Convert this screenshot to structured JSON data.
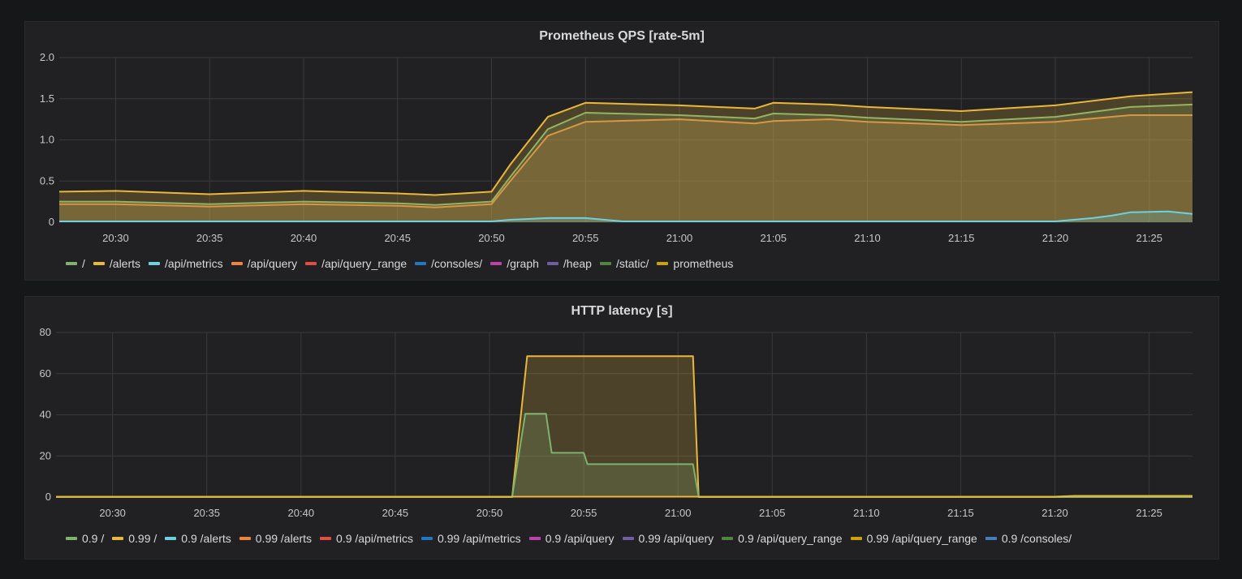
{
  "chart_data": [
    {
      "type": "area",
      "title": "Prometheus QPS [rate-5m]",
      "x_ticks": [
        "20:30",
        "20:35",
        "20:40",
        "20:45",
        "20:50",
        "20:55",
        "21:00",
        "21:05",
        "21:10",
        "21:15",
        "21:20",
        "21:25"
      ],
      "x_tick_minutes": [
        30,
        35,
        40,
        45,
        50,
        55,
        60,
        65,
        70,
        75,
        80,
        85
      ],
      "x_range_minutes": [
        27,
        87.3
      ],
      "y_ticks": [
        "0",
        "0.5",
        "1.0",
        "1.5",
        "2.0"
      ],
      "ylim": [
        0,
        2.0
      ],
      "grid": true,
      "legend_position": "bottom",
      "legend": [
        {
          "name": "/",
          "color": "#7eb26d"
        },
        {
          "name": "/alerts",
          "color": "#eab839"
        },
        {
          "name": "/api/metrics",
          "color": "#6ed0e0"
        },
        {
          "name": "/api/query",
          "color": "#ef843c"
        },
        {
          "name": "/api/query_range",
          "color": "#e24d42"
        },
        {
          "name": "/consoles/",
          "color": "#1f78c1"
        },
        {
          "name": "/graph",
          "color": "#ba43a9"
        },
        {
          "name": "/heap",
          "color": "#705da0"
        },
        {
          "name": "/static/",
          "color": "#508642"
        },
        {
          "name": "prometheus",
          "color": "#cca300"
        }
      ],
      "series": [
        {
          "name": "/api/query_range",
          "color": "#ef843c",
          "x": [
            27,
            30,
            35,
            40,
            45,
            47,
            50,
            51,
            53,
            55,
            60,
            64,
            65,
            68,
            70,
            75,
            80,
            84,
            87.3
          ],
          "values": [
            0.22,
            0.22,
            0.19,
            0.22,
            0.2,
            0.18,
            0.22,
            0.5,
            1.05,
            1.22,
            1.25,
            1.2,
            1.23,
            1.25,
            1.22,
            1.18,
            1.22,
            1.3,
            1.3
          ]
        },
        {
          "name": "/static/",
          "color": "#7eb26d",
          "x": [
            27,
            30,
            35,
            40,
            45,
            47,
            50,
            51,
            53,
            55,
            60,
            64,
            65,
            68,
            70,
            75,
            80,
            84,
            87.3
          ],
          "values": [
            0.25,
            0.25,
            0.22,
            0.25,
            0.23,
            0.21,
            0.25,
            0.55,
            1.13,
            1.33,
            1.3,
            1.26,
            1.32,
            1.3,
            1.27,
            1.22,
            1.28,
            1.4,
            1.43
          ]
        },
        {
          "name": "prometheus",
          "color": "#eab839",
          "x": [
            27,
            30,
            35,
            40,
            45,
            47,
            50,
            51,
            53,
            55,
            60,
            64,
            65,
            68,
            70,
            75,
            80,
            84,
            87.3
          ],
          "values": [
            0.37,
            0.38,
            0.34,
            0.38,
            0.35,
            0.33,
            0.37,
            0.7,
            1.28,
            1.45,
            1.42,
            1.38,
            1.45,
            1.43,
            1.4,
            1.35,
            1.42,
            1.53,
            1.58
          ]
        },
        {
          "name": "/api/metrics",
          "color": "#6ed0e0",
          "x": [
            27,
            50,
            51,
            53,
            55,
            56,
            57,
            58,
            80,
            82,
            83,
            84,
            86,
            87.3
          ],
          "values": [
            0.01,
            0.01,
            0.03,
            0.05,
            0.05,
            0.03,
            0.01,
            0.01,
            0.01,
            0.05,
            0.08,
            0.12,
            0.13,
            0.1
          ]
        }
      ]
    },
    {
      "type": "area",
      "title": "HTTP latency [s]",
      "x_ticks": [
        "20:30",
        "20:35",
        "20:40",
        "20:45",
        "20:50",
        "20:55",
        "21:00",
        "21:05",
        "21:10",
        "21:15",
        "21:20",
        "21:25"
      ],
      "x_tick_minutes": [
        30,
        35,
        40,
        45,
        50,
        55,
        60,
        65,
        70,
        75,
        80,
        85
      ],
      "x_range_minutes": [
        27,
        87.3
      ],
      "y_ticks": [
        "0",
        "20",
        "40",
        "60",
        "80"
      ],
      "ylim": [
        0,
        80
      ],
      "grid": true,
      "legend_position": "bottom",
      "legend": [
        {
          "name": "0.9 /",
          "color": "#7eb26d"
        },
        {
          "name": "0.99 /",
          "color": "#eab839"
        },
        {
          "name": "0.9 /alerts",
          "color": "#6ed0e0"
        },
        {
          "name": "0.99 /alerts",
          "color": "#ef843c"
        },
        {
          "name": "0.9 /api/metrics",
          "color": "#e24d42"
        },
        {
          "name": "0.99 /api/metrics",
          "color": "#1f78c1"
        },
        {
          "name": "0.9 /api/query",
          "color": "#ba43a9"
        },
        {
          "name": "0.99 /api/query",
          "color": "#705da0"
        },
        {
          "name": "0.9 /api/query_range",
          "color": "#508642"
        },
        {
          "name": "0.99 /api/query_range",
          "color": "#cca300"
        },
        {
          "name": "0.9 /consoles/",
          "color": "#447ebc"
        }
      ],
      "series": [
        {
          "name": "0.99 /api/query_range",
          "color": "#eab839",
          "x": [
            27,
            51.2,
            52.0,
            60.8,
            61.1,
            87.3
          ],
          "values": [
            0,
            0,
            68.5,
            68.5,
            0,
            0
          ]
        },
        {
          "name": "0.9 /api/query_range",
          "color": "#7eb26d",
          "x": [
            27,
            51.2,
            51.9,
            53.0,
            53.3,
            55.0,
            55.2,
            60.8,
            61.1,
            87.3
          ],
          "values": [
            0,
            0,
            40.5,
            40.5,
            21.5,
            21.5,
            16,
            16,
            0,
            0
          ]
        },
        {
          "name": "0.99 /",
          "color": "#eab839",
          "x": [
            27,
            80,
            81,
            87.3
          ],
          "values": [
            0.2,
            0.2,
            0.6,
            0.6
          ]
        }
      ]
    }
  ]
}
